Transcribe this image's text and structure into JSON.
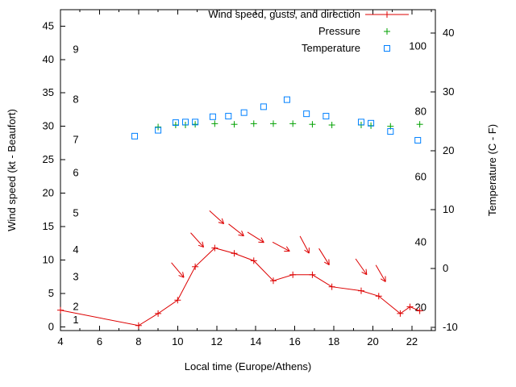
{
  "figure": {
    "background": "#ffffff"
  },
  "chart_data": {
    "type": "line",
    "title": "",
    "xlabel": "Local time (Europe/Athens)",
    "ylabel_left": "Wind speed (kt - Beaufort)",
    "ylabel_right": "Temperature (C - F)",
    "grid": false,
    "legend_position": "top-right",
    "x_range": [
      4,
      23.2
    ],
    "x_major_ticks": [
      4,
      6,
      8,
      10,
      12,
      14,
      16,
      18,
      20,
      22
    ],
    "x_minor_step": 1,
    "y_left_range": [
      -0.55,
      47.45
    ],
    "y_left_ticks": [
      0,
      5,
      10,
      15,
      20,
      25,
      30,
      35,
      40,
      45
    ],
    "beaufort_scale_labels": [
      {
        "label": "1",
        "kt": 1
      },
      {
        "label": "2",
        "kt": 3
      },
      {
        "label": "3",
        "kt": 7.5
      },
      {
        "label": "4",
        "kt": 11.5
      },
      {
        "label": "5",
        "kt": 17
      },
      {
        "label": "6",
        "kt": 23
      },
      {
        "label": "7",
        "kt": 28
      },
      {
        "label": "8",
        "kt": 34
      },
      {
        "label": "9",
        "kt": 41.5
      }
    ],
    "y_right_range_c": [
      -10.55,
      44
    ],
    "y_right_ticks_c": [
      -10,
      0,
      10,
      20,
      30,
      40
    ],
    "fahrenheit_scale_labels": [
      {
        "label": "20",
        "f": 20
      },
      {
        "label": "40",
        "f": 40
      },
      {
        "label": "60",
        "f": 60
      },
      {
        "label": "80",
        "f": 80
      },
      {
        "label": "100",
        "f": 100
      }
    ],
    "series": [
      {
        "name": "Wind speed, gusts, and direction",
        "type": "line",
        "marker": "plus",
        "color": "#dd0000",
        "axis": "left",
        "points": [
          [
            4,
            2.5
          ],
          [
            8,
            0.2
          ],
          [
            9,
            2
          ],
          [
            10,
            4
          ],
          [
            10.9,
            9
          ],
          [
            11.9,
            11.8
          ],
          [
            12.9,
            11
          ],
          [
            13.9,
            9.9
          ],
          [
            14.9,
            6.9
          ],
          [
            15.9,
            7.8
          ],
          [
            16.9,
            7.8
          ],
          [
            17.9,
            6
          ],
          [
            19.4,
            5.4
          ],
          [
            20.3,
            4.6
          ],
          [
            21.4,
            2
          ],
          [
            21.9,
            3
          ],
          [
            22.4,
            2.4
          ]
        ]
      },
      {
        "name": "Pressure",
        "type": "scatter",
        "marker": "plus",
        "color": "#00a000",
        "axis": "left",
        "points": [
          [
            9,
            29.9
          ],
          [
            9.9,
            30.2
          ],
          [
            10.4,
            30.2
          ],
          [
            10.9,
            30.3
          ],
          [
            11.9,
            30.4
          ],
          [
            12.9,
            30.3
          ],
          [
            13.9,
            30.4
          ],
          [
            14.9,
            30.4
          ],
          [
            15.9,
            30.4
          ],
          [
            16.9,
            30.3
          ],
          [
            17.9,
            30.2
          ],
          [
            19.4,
            30.2
          ],
          [
            19.9,
            30.1
          ],
          [
            20.9,
            30.0
          ],
          [
            22.4,
            30.3
          ]
        ]
      },
      {
        "name": "Temperature",
        "type": "scatter",
        "marker": "open-square",
        "color": "#0080ff",
        "axis": "right",
        "points": [
          [
            7.8,
            22.5
          ],
          [
            9,
            23.5
          ],
          [
            9.9,
            24.8
          ],
          [
            10.4,
            24.9
          ],
          [
            10.9,
            24.9
          ],
          [
            11.8,
            25.8
          ],
          [
            12.6,
            25.9
          ],
          [
            13.4,
            26.5
          ],
          [
            14.4,
            27.5
          ],
          [
            15.6,
            28.7
          ],
          [
            16.6,
            26.3
          ],
          [
            17.6,
            25.9
          ],
          [
            19.4,
            24.9
          ],
          [
            19.9,
            24.7
          ],
          [
            20.9,
            23.3
          ],
          [
            22.3,
            21.8
          ]
        ]
      }
    ],
    "wind_direction_arrows": [
      {
        "x": 10,
        "y": 8.5,
        "angle_deg": 50
      },
      {
        "x": 11,
        "y": 13.0,
        "angle_deg": 48
      },
      {
        "x": 12,
        "y": 16.4,
        "angle_deg": 42
      },
      {
        "x": 13,
        "y": 14.5,
        "angle_deg": 38
      },
      {
        "x": 14,
        "y": 13.4,
        "angle_deg": 32
      },
      {
        "x": 15.3,
        "y": 12.0,
        "angle_deg": 28
      },
      {
        "x": 16.5,
        "y": 12.3,
        "angle_deg": 62
      },
      {
        "x": 17.5,
        "y": 10.5,
        "angle_deg": 58
      },
      {
        "x": 19.4,
        "y": 9.0,
        "angle_deg": 55
      },
      {
        "x": 20.4,
        "y": 8.0,
        "angle_deg": 60
      }
    ]
  }
}
